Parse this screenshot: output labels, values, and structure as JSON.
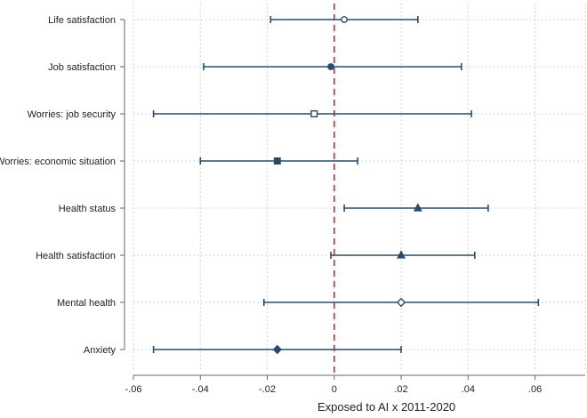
{
  "chart_data": {
    "type": "scatter",
    "subtype": "coefficient-plot",
    "xlabel": "Exposed to AI x 2011-2020",
    "xlim": [
      -0.06,
      0.075
    ],
    "x_ticks": [
      -0.06,
      -0.04,
      -0.02,
      0,
      0.02,
      0.04,
      0.06
    ],
    "x_tick_labels": [
      "-.06",
      "-.04",
      "-.02",
      "0",
      ".02",
      ".04",
      ".06"
    ],
    "reference_line": {
      "x": 0,
      "color": "#d62728",
      "style": "dashed"
    },
    "grid": true,
    "marker_color": "#2b4a6b",
    "categories": [
      "Life satisfaction",
      "Job satisfaction",
      "Worries: job security",
      "Worries: economic situation",
      "Health status",
      "Health satisfaction",
      "Mental health",
      "Anxiety"
    ],
    "estimates": [
      {
        "label": "Life satisfaction",
        "coef": 0.003,
        "ci": [
          -0.019,
          0.025
        ],
        "marker": "circle-open"
      },
      {
        "label": "Job satisfaction",
        "coef": -0.001,
        "ci": [
          -0.039,
          0.038
        ],
        "marker": "circle"
      },
      {
        "label": "Worries: job security",
        "coef": -0.006,
        "ci": [
          -0.054,
          0.041
        ],
        "marker": "square-open"
      },
      {
        "label": "Worries: economic situation",
        "coef": -0.017,
        "ci": [
          -0.04,
          0.007
        ],
        "marker": "square"
      },
      {
        "label": "Health status",
        "coef": 0.025,
        "ci": [
          0.003,
          0.046
        ],
        "marker": "triangle"
      },
      {
        "label": "Health satisfaction",
        "coef": 0.02,
        "ci": [
          -0.001,
          0.042
        ],
        "marker": "triangle"
      },
      {
        "label": "Mental health",
        "coef": 0.02,
        "ci": [
          -0.021,
          0.061
        ],
        "marker": "diamond-open"
      },
      {
        "label": "Anxiety",
        "coef": -0.017,
        "ci": [
          -0.054,
          0.02
        ],
        "marker": "diamond"
      }
    ]
  }
}
